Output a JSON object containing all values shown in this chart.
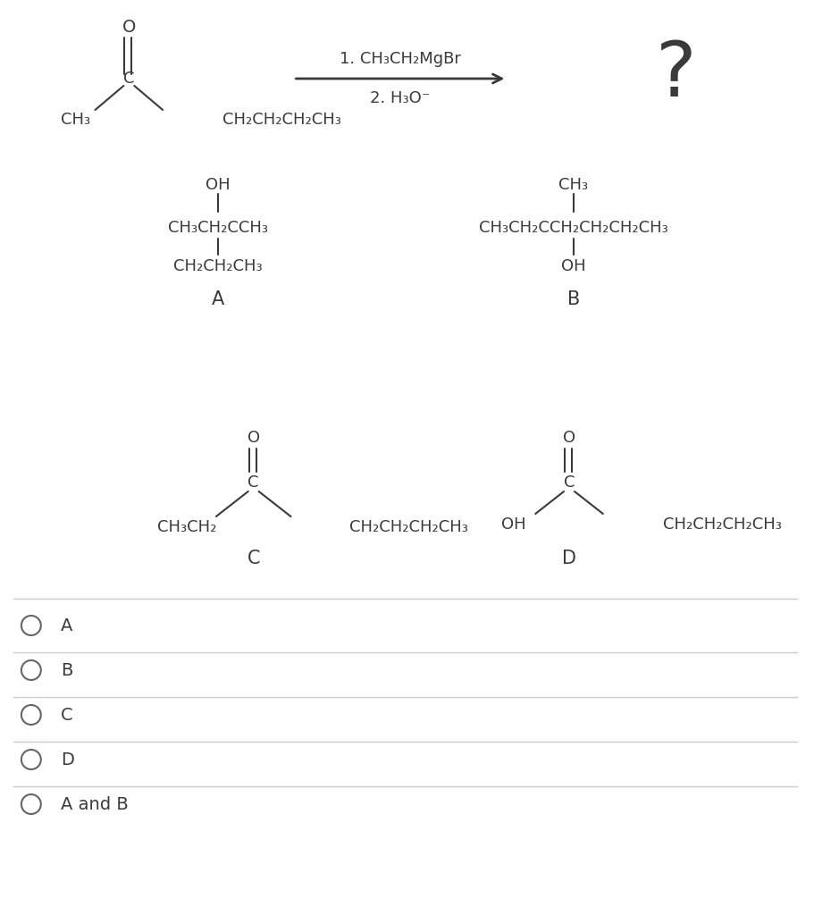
{
  "bg_color": "#ffffff",
  "text_color": "#3a3a3a",
  "line_color": "#3a3a3a",
  "font_size": 13,
  "choices": [
    "A",
    "B",
    "C",
    "D",
    "A and B"
  ]
}
